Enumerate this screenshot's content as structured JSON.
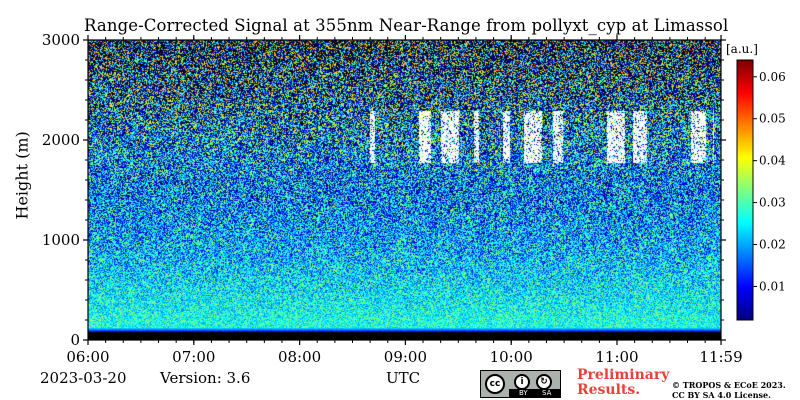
{
  "chart_data": {
    "type": "heatmap",
    "title": "Range-Corrected Signal at 355nm Near-Range from pollyxt_cyp at Limassol",
    "xlabel": "UTC",
    "ylabel": "Height (m)",
    "x_ticks": [
      "06:00",
      "07:00",
      "08:00",
      "09:00",
      "10:00",
      "11:00",
      "11:59"
    ],
    "x_range_hours": [
      6.0,
      11.983
    ],
    "y_ticks": [
      0,
      1000,
      2000,
      3000
    ],
    "ylim": [
      0,
      3000
    ],
    "colorbar": {
      "label": "[a.u.]",
      "ticks": [
        0.01,
        0.02,
        0.03,
        0.04,
        0.05,
        0.06
      ],
      "range": [
        0.002,
        0.064
      ],
      "colormap": "jet"
    },
    "features": {
      "surface_blind_zone_top_m": 80,
      "overlap_band_top_m": 120,
      "cloud_layer": {
        "time_start": "08:40",
        "time_end": "11:55",
        "base_m": 1700,
        "top_m": 2400
      }
    },
    "colors": {
      "nodata": "#000000",
      "cloud": "#ffffff"
    }
  },
  "footer": {
    "date": "2023-03-20",
    "version": "Version: 3.6",
    "xlabel": "UTC",
    "preliminary_line1": "Preliminary",
    "preliminary_line2": "Results.",
    "license_line1": "© TROPOS & ECoE 2023.",
    "license_line2": "CC BY SA 4.0 License.",
    "cc_logo": "cc",
    "cc_by": "BY",
    "cc_sa": "SA"
  }
}
